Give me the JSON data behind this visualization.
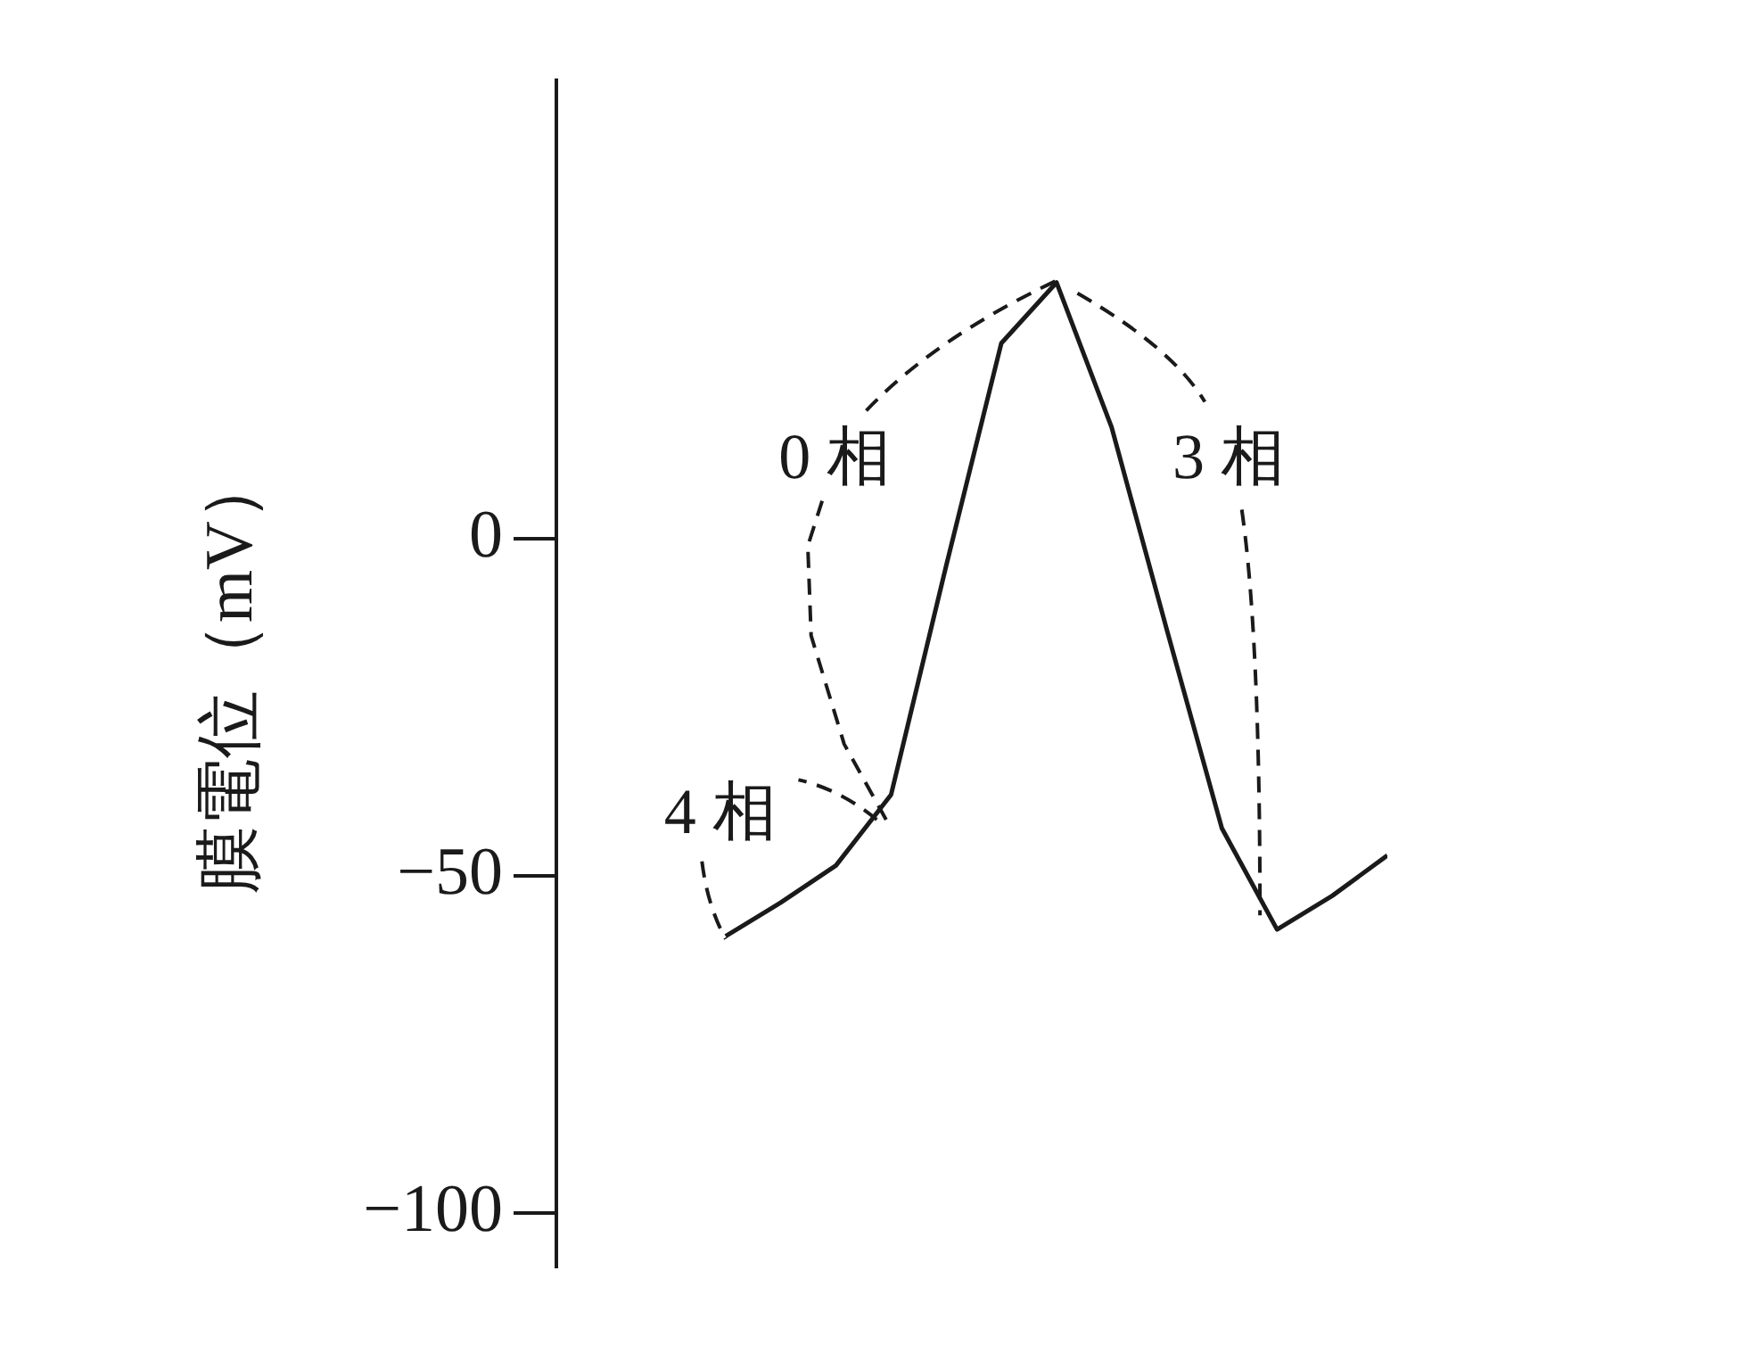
{
  "chart_data": {
    "type": "line",
    "ylabel": "膜電位（mV）",
    "categories": [
      null,
      null,
      null,
      null,
      null,
      null,
      null,
      null,
      null,
      null,
      null,
      null,
      null
    ],
    "series": [
      {
        "color": "#1a1a1a",
        "values": [
          -59,
          -54,
          -48.5,
          -38,
          -4,
          29,
          38,
          16.5,
          -13.5,
          -43,
          -58,
          -53,
          -47
        ]
      }
    ],
    "ylim": [
      -108,
      68
    ],
    "yticks": [
      -100,
      -50,
      0
    ],
    "tick_labels": "y",
    "marker": "none",
    "line_style": "solid",
    "annotations": [
      "0 相",
      "3 相",
      "4 相"
    ]
  }
}
